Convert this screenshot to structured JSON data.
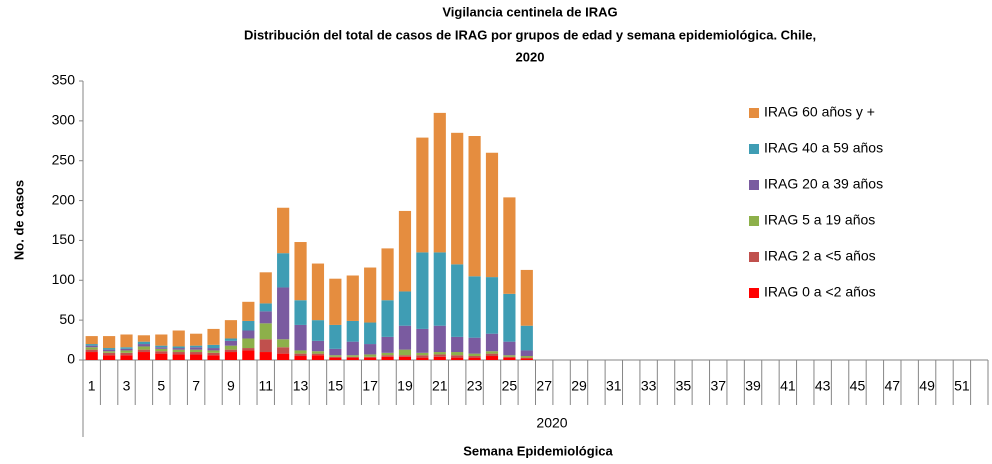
{
  "chart_data": {
    "type": "stacked_bar",
    "title": "Vigilancia centinela de IRAG",
    "subtitle": [
      "Distribución del total de casos de IRAG por  grupos de edad y semana epidemiológica.    Chile,",
      "2020"
    ],
    "y_label": "No. de casos",
    "x_group_label": "2020",
    "x_label": "Semana Epidemiológica",
    "categories": [
      "1",
      null,
      "3",
      null,
      "5",
      null,
      "7",
      null,
      "9",
      null,
      "11",
      null,
      "13",
      null,
      "15",
      null,
      "17",
      null,
      "19",
      null,
      "21",
      null,
      "23",
      null,
      "25",
      null,
      "27",
      null,
      "29",
      null,
      "31",
      null,
      "33",
      null,
      "35",
      null,
      "37",
      null,
      "39",
      null,
      "41",
      null,
      "43",
      null,
      "45",
      null,
      "47",
      null,
      "49",
      null,
      "51",
      null
    ],
    "series": [
      {
        "name": "IRAG 0 a <2 años",
        "color": "#ff0000",
        "values": [
          10,
          6,
          6,
          10,
          8,
          7,
          7,
          6,
          10,
          12,
          10,
          8,
          5,
          6,
          3,
          3,
          3,
          4,
          4,
          3,
          4,
          3,
          3,
          5,
          3,
          2,
          null,
          null,
          null,
          null,
          null,
          null,
          null,
          null,
          null,
          null,
          null,
          null,
          null,
          null,
          null,
          null,
          null,
          null,
          null,
          null,
          null,
          null,
          null,
          null,
          null,
          null
        ]
      },
      {
        "name": "IRAG 2 a <5 años",
        "color": "#c0504d",
        "values": [
          3,
          3,
          3,
          3,
          3,
          3,
          3,
          3,
          3,
          3,
          16,
          8,
          3,
          2,
          1,
          1,
          1,
          2,
          2,
          3,
          3,
          3,
          2,
          3,
          1,
          1,
          null,
          null,
          null,
          null,
          null,
          null,
          null,
          null,
          null,
          null,
          null,
          null,
          null,
          null,
          null,
          null,
          null,
          null,
          null,
          null,
          null,
          null,
          null,
          null,
          null,
          null
        ]
      },
      {
        "name": "IRAG 5 a 19 años",
        "color": "#8db04a",
        "values": [
          3,
          2,
          3,
          4,
          3,
          3,
          3,
          3,
          5,
          12,
          20,
          10,
          4,
          3,
          2,
          2,
          3,
          3,
          7,
          3,
          3,
          4,
          3,
          3,
          2,
          2,
          null,
          null,
          null,
          null,
          null,
          null,
          null,
          null,
          null,
          null,
          null,
          null,
          null,
          null,
          null,
          null,
          null,
          null,
          null,
          null,
          null,
          null,
          null,
          null,
          null,
          null
        ]
      },
      {
        "name": "IRAG 20 a 39 años",
        "color": "#7a5ba0",
        "values": [
          2,
          2,
          2,
          3,
          2,
          2,
          3,
          3,
          6,
          10,
          15,
          65,
          32,
          13,
          8,
          17,
          13,
          20,
          30,
          30,
          33,
          19,
          20,
          22,
          17,
          7,
          null,
          null,
          null,
          null,
          null,
          null,
          null,
          null,
          null,
          null,
          null,
          null,
          null,
          null,
          null,
          null,
          null,
          null,
          null,
          null,
          null,
          null,
          null,
          null,
          null,
          null
        ]
      },
      {
        "name": "IRAG 40 a 59 años",
        "color": "#3f9db4",
        "values": [
          2,
          2,
          2,
          3,
          2,
          2,
          2,
          4,
          3,
          12,
          10,
          43,
          31,
          26,
          30,
          26,
          27,
          46,
          43,
          96,
          92,
          91,
          77,
          71,
          60,
          31,
          null,
          null,
          null,
          null,
          null,
          null,
          null,
          null,
          null,
          null,
          null,
          null,
          null,
          null,
          null,
          null,
          null,
          null,
          null,
          null,
          null,
          null,
          null,
          null,
          null,
          null
        ]
      },
      {
        "name": "IRAG 60 años y +",
        "color": "#e58d3f",
        "values": [
          10,
          15,
          16,
          8,
          14,
          20,
          15,
          20,
          23,
          24,
          39,
          57,
          73,
          71,
          58,
          57,
          69,
          65,
          101,
          144,
          175,
          165,
          176,
          156,
          121,
          70,
          null,
          null,
          null,
          null,
          null,
          null,
          null,
          null,
          null,
          null,
          null,
          null,
          null,
          null,
          null,
          null,
          null,
          null,
          null,
          null,
          null,
          null,
          null,
          null,
          null,
          null
        ]
      }
    ],
    "ylim": [
      0,
      350
    ],
    "yticks": [
      0,
      50,
      100,
      150,
      200,
      250,
      300,
      350
    ]
  }
}
